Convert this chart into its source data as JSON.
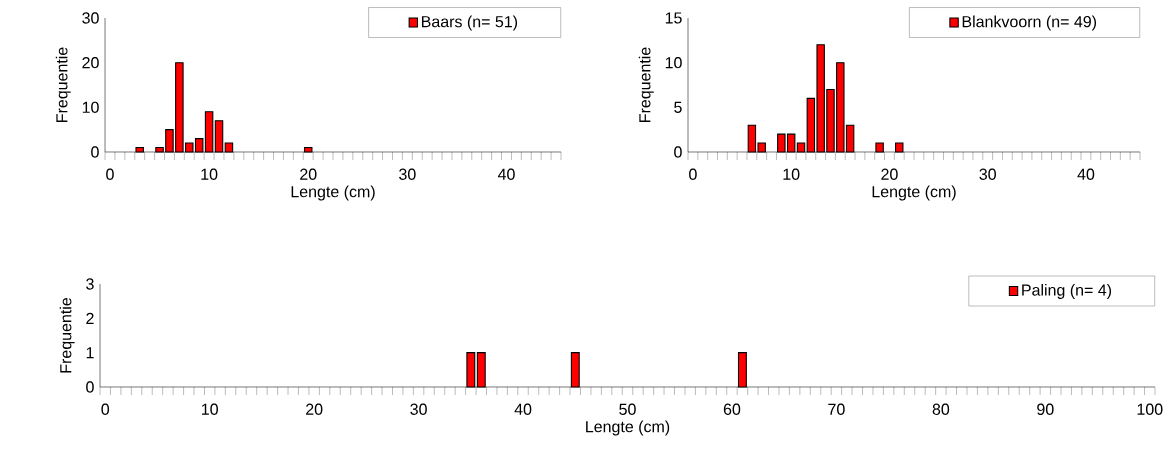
{
  "chart_data": [
    {
      "type": "bar",
      "xlabel": "Lengte (cm)",
      "ylabel": "Frequentie",
      "legend": "top right",
      "categories": [
        "0",
        null,
        null,
        null,
        null,
        null,
        null,
        null,
        null,
        null,
        "10",
        null,
        null,
        null,
        null,
        null,
        null,
        null,
        null,
        null,
        "20",
        null,
        null,
        null,
        null,
        null,
        null,
        null,
        null,
        null,
        "30",
        null,
        null,
        null,
        null,
        null,
        null,
        null,
        null,
        null,
        "40",
        null,
        null,
        null,
        null,
        null
      ],
      "series": [
        {
          "name": "Baars (n= 51)",
          "color": "#ff0000",
          "values": [
            null,
            null,
            null,
            1,
            null,
            1,
            5,
            20,
            2,
            3,
            9,
            7,
            2,
            null,
            null,
            null,
            null,
            null,
            null,
            null,
            1,
            null,
            null,
            null,
            null,
            null,
            null,
            null,
            null,
            null,
            null,
            null,
            null,
            null,
            null,
            null,
            null,
            null,
            null,
            null,
            null,
            null,
            null,
            null,
            null,
            null
          ]
        }
      ],
      "ylim": [
        0,
        30
      ],
      "yticks": [
        0,
        10,
        20,
        30
      ]
    },
    {
      "type": "bar",
      "xlabel": "Lengte (cm)",
      "ylabel": "Frequentie",
      "legend": "top right",
      "categories": [
        "0",
        null,
        null,
        null,
        null,
        null,
        null,
        null,
        null,
        null,
        "10",
        null,
        null,
        null,
        null,
        null,
        null,
        null,
        null,
        null,
        "20",
        null,
        null,
        null,
        null,
        null,
        null,
        null,
        null,
        null,
        "30",
        null,
        null,
        null,
        null,
        null,
        null,
        null,
        null,
        null,
        "40",
        null,
        null,
        null,
        null,
        null
      ],
      "series": [
        {
          "name": "Blankvoorn (n= 49)",
          "color": "#ff0000",
          "values": [
            null,
            null,
            null,
            null,
            null,
            null,
            3,
            1,
            null,
            2,
            2,
            1,
            6,
            12,
            7,
            10,
            3,
            null,
            null,
            1,
            null,
            1,
            null,
            null,
            null,
            null,
            null,
            null,
            null,
            null,
            null,
            null,
            null,
            null,
            null,
            null,
            null,
            null,
            null,
            null,
            null,
            null,
            null,
            null,
            null,
            null
          ]
        }
      ],
      "ylim": [
        0,
        15
      ],
      "yticks": [
        0,
        5,
        10,
        15
      ]
    },
    {
      "type": "bar",
      "xlabel": "Lengte (cm)",
      "ylabel": "Frequentie",
      "legend": "top right",
      "categories": [
        "0",
        null,
        null,
        null,
        null,
        null,
        null,
        null,
        null,
        null,
        "10",
        null,
        null,
        null,
        null,
        null,
        null,
        null,
        null,
        null,
        "20",
        null,
        null,
        null,
        null,
        null,
        null,
        null,
        null,
        null,
        "30",
        null,
        null,
        null,
        null,
        null,
        null,
        null,
        null,
        null,
        "40",
        null,
        null,
        null,
        null,
        null,
        null,
        null,
        null,
        null,
        "50",
        null,
        null,
        null,
        null,
        null,
        null,
        null,
        null,
        null,
        "60",
        null,
        null,
        null,
        null,
        null,
        null,
        null,
        null,
        null,
        "70",
        null,
        null,
        null,
        null,
        null,
        null,
        null,
        null,
        null,
        "80",
        null,
        null,
        null,
        null,
        null,
        null,
        null,
        null,
        null,
        "90",
        null,
        null,
        null,
        null,
        null,
        null,
        null,
        null,
        null,
        "100"
      ],
      "series": [
        {
          "name": "Paling (n= 4)",
          "color": "#ff0000",
          "values": [
            null,
            null,
            null,
            null,
            null,
            null,
            null,
            null,
            null,
            null,
            null,
            null,
            null,
            null,
            null,
            null,
            null,
            null,
            null,
            null,
            null,
            null,
            null,
            null,
            null,
            null,
            null,
            null,
            null,
            null,
            null,
            null,
            null,
            null,
            null,
            1,
            1,
            null,
            null,
            null,
            null,
            null,
            null,
            null,
            null,
            1,
            null,
            null,
            null,
            null,
            null,
            null,
            null,
            null,
            null,
            null,
            null,
            null,
            null,
            null,
            null,
            1,
            null,
            null,
            null,
            null,
            null,
            null,
            null,
            null,
            null,
            null,
            null,
            null,
            null,
            null,
            null,
            null,
            null,
            null,
            null,
            null,
            null,
            null,
            null,
            null,
            null,
            null,
            null,
            null,
            null,
            null,
            null,
            null,
            null,
            null,
            null,
            null,
            null,
            null,
            null
          ]
        }
      ],
      "ylim": [
        0,
        3
      ],
      "yticks": [
        0,
        1,
        2,
        3
      ]
    }
  ]
}
